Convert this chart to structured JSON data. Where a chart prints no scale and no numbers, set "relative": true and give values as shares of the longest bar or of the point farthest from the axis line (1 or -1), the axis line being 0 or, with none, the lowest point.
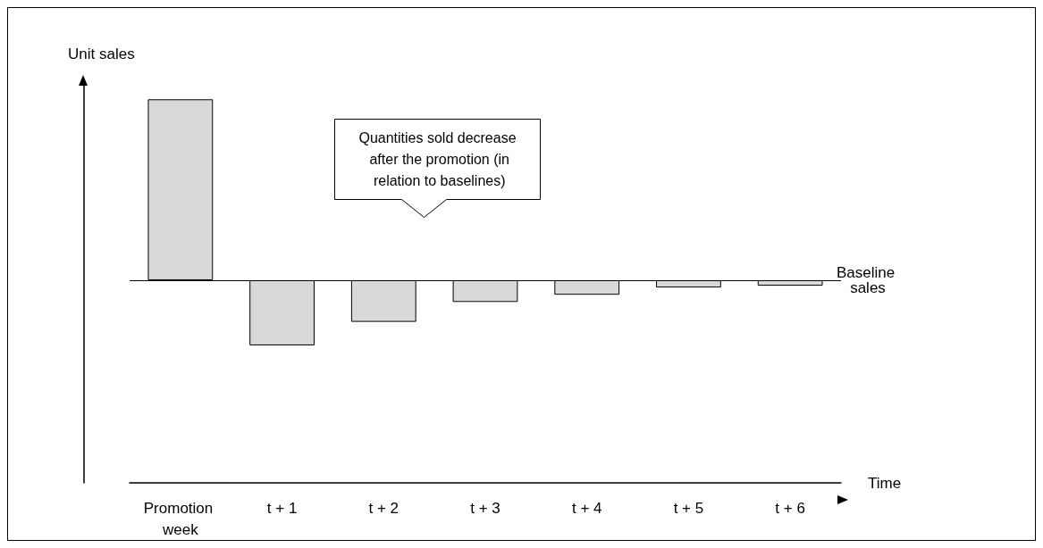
{
  "chart_data": {
    "type": "bar",
    "relative": true,
    "ylabel": "Unit sales",
    "xlabel": "Time",
    "categories": [
      "Promotion week",
      "t + 1",
      "t + 2",
      "t + 3",
      "t + 4",
      "t + 5",
      "t + 6"
    ],
    "values": [
      1,
      -0.36,
      -0.23,
      -0.12,
      -0.08,
      -0.04,
      -0.03
    ],
    "color": "#d9d9d9",
    "ref_lines": [
      {
        "axis": "y",
        "value": 0,
        "label": "Baseline sales",
        "color": "#000000"
      }
    ],
    "annotations": [
      "Quantities sold decrease after the promotion (in relation to baselines)"
    ]
  }
}
